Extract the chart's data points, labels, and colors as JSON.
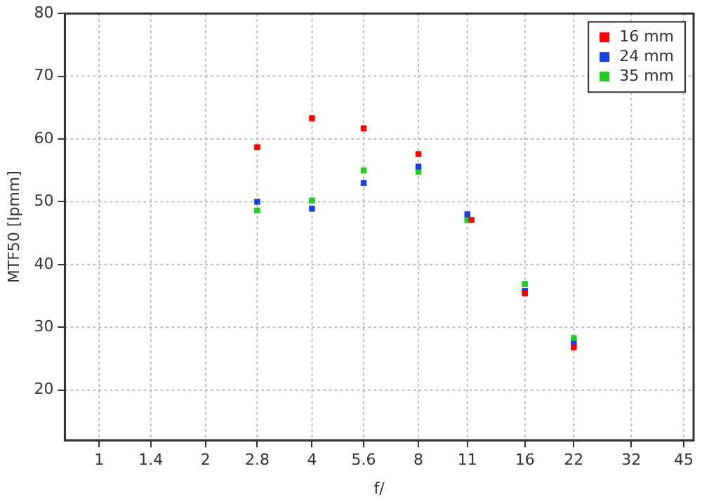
{
  "chart_data": {
    "type": "scatter",
    "xlabel": "f/",
    "ylabel": "MTF50 [lpmm]",
    "log": "x",
    "xlim": [
      0.8,
      48
    ],
    "xticks": [
      1,
      1.4,
      2,
      2.8,
      4,
      5.6,
      8,
      11,
      16,
      22,
      32,
      45
    ],
    "ylim": [
      12,
      80
    ],
    "yticks": [
      20,
      30,
      40,
      50,
      60,
      70,
      80
    ],
    "grid": true,
    "legend": "top right",
    "marker": "square",
    "series": [
      {
        "name": "16 mm",
        "color": "#ff0000",
        "x": [
          2.8,
          4,
          5.6,
          8,
          11.3,
          16,
          22
        ],
        "values": [
          58.7,
          63.3,
          61.7,
          57.6,
          47.1,
          35.4,
          26.8
        ]
      },
      {
        "name": "24 mm",
        "color": "#1a3fe0",
        "x": [
          2.8,
          4,
          5.6,
          8,
          11,
          16,
          22
        ],
        "values": [
          50.0,
          48.9,
          53.0,
          55.6,
          48.0,
          35.8,
          27.4
        ]
      },
      {
        "name": "35 mm",
        "color": "#22cc22",
        "x": [
          2.8,
          4,
          5.6,
          8,
          11,
          16,
          22
        ],
        "values": [
          48.6,
          50.2,
          55.0,
          54.8,
          47.1,
          36.9,
          28.3
        ]
      }
    ]
  }
}
